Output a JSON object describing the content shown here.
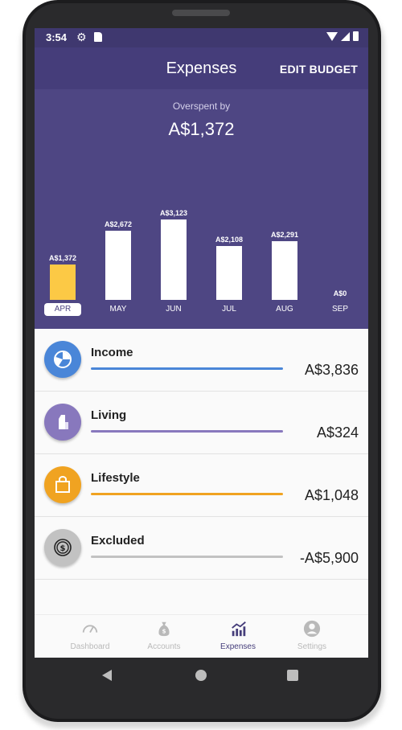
{
  "status_bar": {
    "time": "3:54"
  },
  "header": {
    "title": "Expenses",
    "action": "EDIT BUDGET"
  },
  "summary": {
    "label": "Overspent by",
    "value": "A$1,372"
  },
  "chart_data": {
    "type": "bar",
    "categories": [
      "APR",
      "MAY",
      "JUN",
      "JUL",
      "AUG",
      "SEP"
    ],
    "values": [
      1372,
      2672,
      3123,
      2108,
      2291,
      0
    ],
    "value_labels": [
      "A$1,372",
      "A$2,672",
      "A$3,123",
      "A$2,108",
      "A$2,291",
      "A$0"
    ],
    "selected": "APR",
    "colors": {
      "bar": "#ffffff",
      "selected_bar": "#fcc945"
    }
  },
  "categories": [
    {
      "name": "Income",
      "amount": "A$3,836",
      "color": "#4a86d8",
      "icon": "pie-chart-icon"
    },
    {
      "name": "Living",
      "amount": "A$324",
      "color": "#8878bd",
      "icon": "milk-carton-icon"
    },
    {
      "name": "Lifestyle",
      "amount": "A$1,048",
      "color": "#f0a321",
      "icon": "shopping-bag-icon"
    },
    {
      "name": "Excluded",
      "amount": "-A$5,900",
      "color": "#c2c2c2",
      "icon": "dollar-coin-icon"
    }
  ],
  "nav": [
    {
      "label": "Dashboard",
      "icon": "gauge-icon"
    },
    {
      "label": "Accounts",
      "icon": "money-bag-icon"
    },
    {
      "label": "Expenses",
      "icon": "trend-chart-icon"
    },
    {
      "label": "Settings",
      "icon": "person-icon"
    }
  ],
  "nav_active": "Expenses"
}
